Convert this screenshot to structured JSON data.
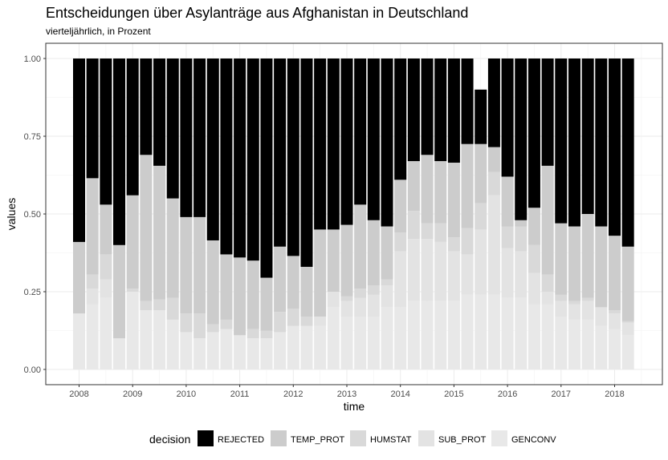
{
  "chart_data": {
    "type": "bar",
    "stacked": true,
    "title": "Entscheidungen über Asylanträge aus Afghanistan in Deutschland",
    "subtitle": "vierteljährlich, in Prozent",
    "xlabel": "time",
    "ylabel": "values",
    "ylim": [
      0,
      1
    ],
    "y_ticks": [
      "0.00",
      "0.25",
      "0.50",
      "0.75",
      "1.00"
    ],
    "y_tick_values": [
      0,
      0.25,
      0.5,
      0.75,
      1
    ],
    "x_ticks": [
      "2008",
      "2009",
      "2010",
      "2011",
      "2012",
      "2013",
      "2014",
      "2015",
      "2016",
      "2017",
      "2018"
    ],
    "x_tick_values": [
      2008,
      2009,
      2010,
      2011,
      2012,
      2013,
      2014,
      2015,
      2016,
      2017,
      2018
    ],
    "x": [
      2008.0,
      2008.25,
      2008.5,
      2008.75,
      2009.0,
      2009.25,
      2009.5,
      2009.75,
      2010.0,
      2010.25,
      2010.5,
      2010.75,
      2011.0,
      2011.25,
      2011.5,
      2011.75,
      2012.0,
      2012.25,
      2012.5,
      2012.75,
      2013.0,
      2013.25,
      2013.5,
      2013.75,
      2014.0,
      2014.25,
      2014.5,
      2014.75,
      2015.0,
      2015.25,
      2015.5,
      2015.75,
      2016.0,
      2016.25,
      2016.5,
      2016.75,
      2017.0,
      2017.25,
      2017.5,
      2017.75,
      2018.0,
      2018.25
    ],
    "grid": true,
    "legend": {
      "title": "decision",
      "position": "bottom",
      "items": [
        "REJECTED",
        "TEMP_PROT",
        "HUMSTAT",
        "SUB_PROT",
        "GENCONV"
      ]
    },
    "series": [
      {
        "name": "GENCONV",
        "color": "#e8e8e8",
        "values": [
          0.18,
          0.21,
          0.23,
          0.1,
          0.25,
          0.19,
          0.19,
          0.16,
          0.12,
          0.1,
          0.12,
          0.13,
          0.11,
          0.1,
          0.1,
          0.12,
          0.14,
          0.14,
          0.14,
          0.2,
          0.17,
          0.17,
          0.17,
          0.2,
          0.2,
          0.22,
          0.22,
          0.22,
          0.22,
          0.24,
          0.24,
          0.24,
          0.23,
          0.23,
          0.21,
          0.21,
          0.17,
          0.16,
          0.16,
          0.14,
          0.13,
          0.11
        ]
      },
      {
        "name": "SUB_PROT",
        "color": "#e3e3e3",
        "values": [
          0.0,
          0.05,
          0.06,
          0.0,
          0.0,
          0.0,
          0.0,
          0.0,
          0.0,
          0.0,
          0.0,
          0.0,
          0.0,
          0.0,
          0.0,
          0.0,
          0.0,
          0.0,
          0.03,
          0.05,
          0.05,
          0.06,
          0.07,
          0.07,
          0.18,
          0.2,
          0.2,
          0.19,
          0.16,
          0.13,
          0.21,
          0.32,
          0.16,
          0.15,
          0.1,
          0.04,
          0.05,
          0.05,
          0.06,
          0.06,
          0.05,
          0.04
        ]
      },
      {
        "name": "HUMSTAT",
        "color": "#d9d9d9",
        "values": [
          0.0,
          0.045,
          0.08,
          0.0,
          0.01,
          0.03,
          0.035,
          0.07,
          0.06,
          0.08,
          0.025,
          0.03,
          0.0,
          0.03,
          0.025,
          0.065,
          0.055,
          0.03,
          0.0,
          0.0,
          0.015,
          0.03,
          0.03,
          0.02,
          0.06,
          0.09,
          0.05,
          0.06,
          0.045,
          0.085,
          0.085,
          0.075,
          0.07,
          0.08,
          0.09,
          0.055,
          0.02,
          0.01,
          0.01,
          0.0,
          0.01,
          0.005
        ]
      },
      {
        "name": "TEMP_PROT",
        "color": "#cccccc",
        "values": [
          0.23,
          0.31,
          0.16,
          0.3,
          0.3,
          0.47,
          0.43,
          0.32,
          0.31,
          0.31,
          0.27,
          0.21,
          0.25,
          0.22,
          0.17,
          0.21,
          0.17,
          0.16,
          0.28,
          0.2,
          0.23,
          0.27,
          0.21,
          0.17,
          0.17,
          0.16,
          0.22,
          0.2,
          0.24,
          0.27,
          0.19,
          0.08,
          0.16,
          0.02,
          0.12,
          0.35,
          0.23,
          0.24,
          0.27,
          0.26,
          0.24,
          0.24
        ]
      },
      {
        "name": "REJECTED",
        "color": "#000000",
        "values": [
          0.59,
          0.385,
          0.47,
          0.6,
          0.44,
          0.31,
          0.345,
          0.45,
          0.51,
          0.51,
          0.585,
          0.63,
          0.64,
          0.65,
          0.705,
          0.605,
          0.635,
          0.67,
          0.55,
          0.55,
          0.535,
          0.47,
          0.52,
          0.54,
          0.39,
          0.33,
          0.31,
          0.33,
          0.335,
          0.275,
          0.175,
          0.285,
          0.38,
          0.52,
          0.48,
          0.345,
          0.53,
          0.54,
          0.5,
          0.54,
          0.57,
          0.605
        ]
      }
    ]
  }
}
